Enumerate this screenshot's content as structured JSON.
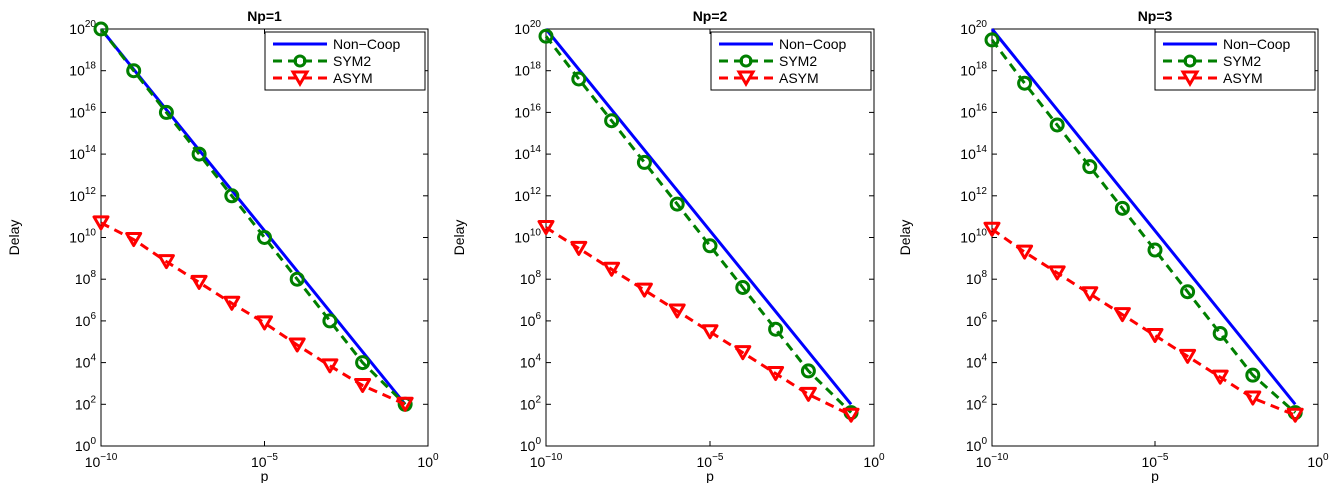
{
  "chart_data": [
    {
      "type": "line",
      "title": "Np=1",
      "xlabel": "p",
      "ylabel": "Delay",
      "x_scale": "log",
      "y_scale": "log",
      "xlim": [
        1e-10,
        1
      ],
      "ylim": [
        1,
        1e+20
      ],
      "x_ticks": [
        {
          "base": "10",
          "exp": "−10"
        },
        {
          "base": "10",
          "exp": "−5"
        },
        {
          "base": "10",
          "exp": "0"
        }
      ],
      "y_ticks": [
        {
          "base": "10",
          "exp": "0"
        },
        {
          "base": "10",
          "exp": "2"
        },
        {
          "base": "10",
          "exp": "4"
        },
        {
          "base": "10",
          "exp": "6"
        },
        {
          "base": "10",
          "exp": "8"
        },
        {
          "base": "10",
          "exp": "10"
        },
        {
          "base": "10",
          "exp": "12"
        },
        {
          "base": "10",
          "exp": "14"
        },
        {
          "base": "10",
          "exp": "16"
        },
        {
          "base": "10",
          "exp": "18"
        },
        {
          "base": "10",
          "exp": "20"
        }
      ],
      "grid": false,
      "legend_position": "top-right",
      "series": [
        {
          "name": "Non−Coop",
          "color": "#0000ff",
          "line": "solid",
          "marker": "none",
          "x": [
            1e-10,
            0.2
          ],
          "y": [
            1e+20,
            100.0
          ]
        },
        {
          "name": "SYM2",
          "color": "#007f00",
          "line": "dashed",
          "marker": "circle",
          "x": [
            1e-10,
            1e-09,
            1e-08,
            1e-07,
            1e-06,
            1e-05,
            0.0001,
            0.001,
            0.01,
            0.2
          ],
          "y": [
            1e+20,
            1e+18,
            1e+16,
            100000000000000.0,
            1000000000000.0,
            10000000000.0,
            100000000.0,
            1000000.0,
            10000.0,
            100.0
          ]
        },
        {
          "name": "ASYM",
          "color": "#ff0000",
          "line": "dashed",
          "marker": "triangle-down",
          "x": [
            1e-10,
            1e-09,
            1e-08,
            1e-07,
            1e-06,
            1e-05,
            0.0001,
            0.001,
            0.01,
            0.2
          ],
          "y": [
            50000000000.0,
            8000000000.0,
            700000000.0,
            70000000.0,
            7000000.0,
            800000.0,
            70000.0,
            7000.0,
            800.0,
            100.0
          ]
        }
      ]
    },
    {
      "type": "line",
      "title": "Np=2",
      "xlabel": "p",
      "ylabel": "Delay",
      "x_scale": "log",
      "y_scale": "log",
      "xlim": [
        1e-10,
        1
      ],
      "ylim": [
        1,
        1e+20
      ],
      "x_ticks": [
        {
          "base": "10",
          "exp": "−10"
        },
        {
          "base": "10",
          "exp": "−5"
        },
        {
          "base": "10",
          "exp": "0"
        }
      ],
      "y_ticks": [
        {
          "base": "10",
          "exp": "0"
        },
        {
          "base": "10",
          "exp": "2"
        },
        {
          "base": "10",
          "exp": "4"
        },
        {
          "base": "10",
          "exp": "6"
        },
        {
          "base": "10",
          "exp": "8"
        },
        {
          "base": "10",
          "exp": "10"
        },
        {
          "base": "10",
          "exp": "12"
        },
        {
          "base": "10",
          "exp": "14"
        },
        {
          "base": "10",
          "exp": "16"
        },
        {
          "base": "10",
          "exp": "18"
        },
        {
          "base": "10",
          "exp": "20"
        }
      ],
      "grid": false,
      "legend_position": "top-right",
      "series": [
        {
          "name": "Non−Coop",
          "color": "#0000ff",
          "line": "solid",
          "marker": "none",
          "x": [
            1e-10,
            0.2
          ],
          "y": [
            1e+20,
            100.0
          ]
        },
        {
          "name": "SYM2",
          "color": "#007f00",
          "line": "dashed",
          "marker": "circle",
          "x": [
            1e-10,
            1e-09,
            1e-08,
            1e-07,
            1e-06,
            1e-05,
            0.0001,
            0.001,
            0.01,
            0.2
          ],
          "y": [
            4.5e+19,
            4e+17,
            4000000000000000.0,
            40000000000000.0,
            400000000000.0,
            4000000000.0,
            40000000.0,
            400000.0,
            4000.0,
            40.0
          ]
        },
        {
          "name": "ASYM",
          "color": "#ff0000",
          "line": "dashed",
          "marker": "triangle-down",
          "x": [
            1e-10,
            1e-09,
            1e-08,
            1e-07,
            1e-06,
            1e-05,
            0.0001,
            0.001,
            0.01,
            0.2
          ],
          "y": [
            30000000000.0,
            3000000000.0,
            300000000.0,
            30000000.0,
            3000000.0,
            300000.0,
            30000.0,
            3000.0,
            300.0,
            30.0
          ]
        }
      ]
    },
    {
      "type": "line",
      "title": "Np=3",
      "xlabel": "p",
      "ylabel": "Delay",
      "x_scale": "log",
      "y_scale": "log",
      "xlim": [
        1e-10,
        1
      ],
      "ylim": [
        1,
        1e+20
      ],
      "x_ticks": [
        {
          "base": "10",
          "exp": "−10"
        },
        {
          "base": "10",
          "exp": "−5"
        },
        {
          "base": "10",
          "exp": "0"
        }
      ],
      "y_ticks": [
        {
          "base": "10",
          "exp": "0"
        },
        {
          "base": "10",
          "exp": "2"
        },
        {
          "base": "10",
          "exp": "4"
        },
        {
          "base": "10",
          "exp": "6"
        },
        {
          "base": "10",
          "exp": "8"
        },
        {
          "base": "10",
          "exp": "10"
        },
        {
          "base": "10",
          "exp": "12"
        },
        {
          "base": "10",
          "exp": "14"
        },
        {
          "base": "10",
          "exp": "16"
        },
        {
          "base": "10",
          "exp": "18"
        },
        {
          "base": "10",
          "exp": "20"
        }
      ],
      "grid": false,
      "legend_position": "top-right",
      "series": [
        {
          "name": "Non−Coop",
          "color": "#0000ff",
          "line": "solid",
          "marker": "none",
          "x": [
            1e-10,
            0.2
          ],
          "y": [
            1e+20,
            100.0
          ]
        },
        {
          "name": "SYM2",
          "color": "#007f00",
          "line": "dashed",
          "marker": "circle",
          "x": [
            1e-10,
            1e-09,
            1e-08,
            1e-07,
            1e-06,
            1e-05,
            0.0001,
            0.001,
            0.01,
            0.2
          ],
          "y": [
            3e+19,
            2.5e+17,
            2500000000000000.0,
            25000000000000.0,
            250000000000.0,
            2500000000.0,
            25000000.0,
            250000.0,
            2500.0,
            40.0
          ]
        },
        {
          "name": "ASYM",
          "color": "#ff0000",
          "line": "dashed",
          "marker": "triangle-down",
          "x": [
            1e-10,
            1e-09,
            1e-08,
            1e-07,
            1e-06,
            1e-05,
            0.0001,
            0.001,
            0.01,
            0.2
          ],
          "y": [
            25000000000.0,
            2000000000.0,
            200000000.0,
            20000000.0,
            2000000.0,
            200000.0,
            20000.0,
            2000.0,
            200.0,
            30.0
          ]
        }
      ]
    }
  ]
}
